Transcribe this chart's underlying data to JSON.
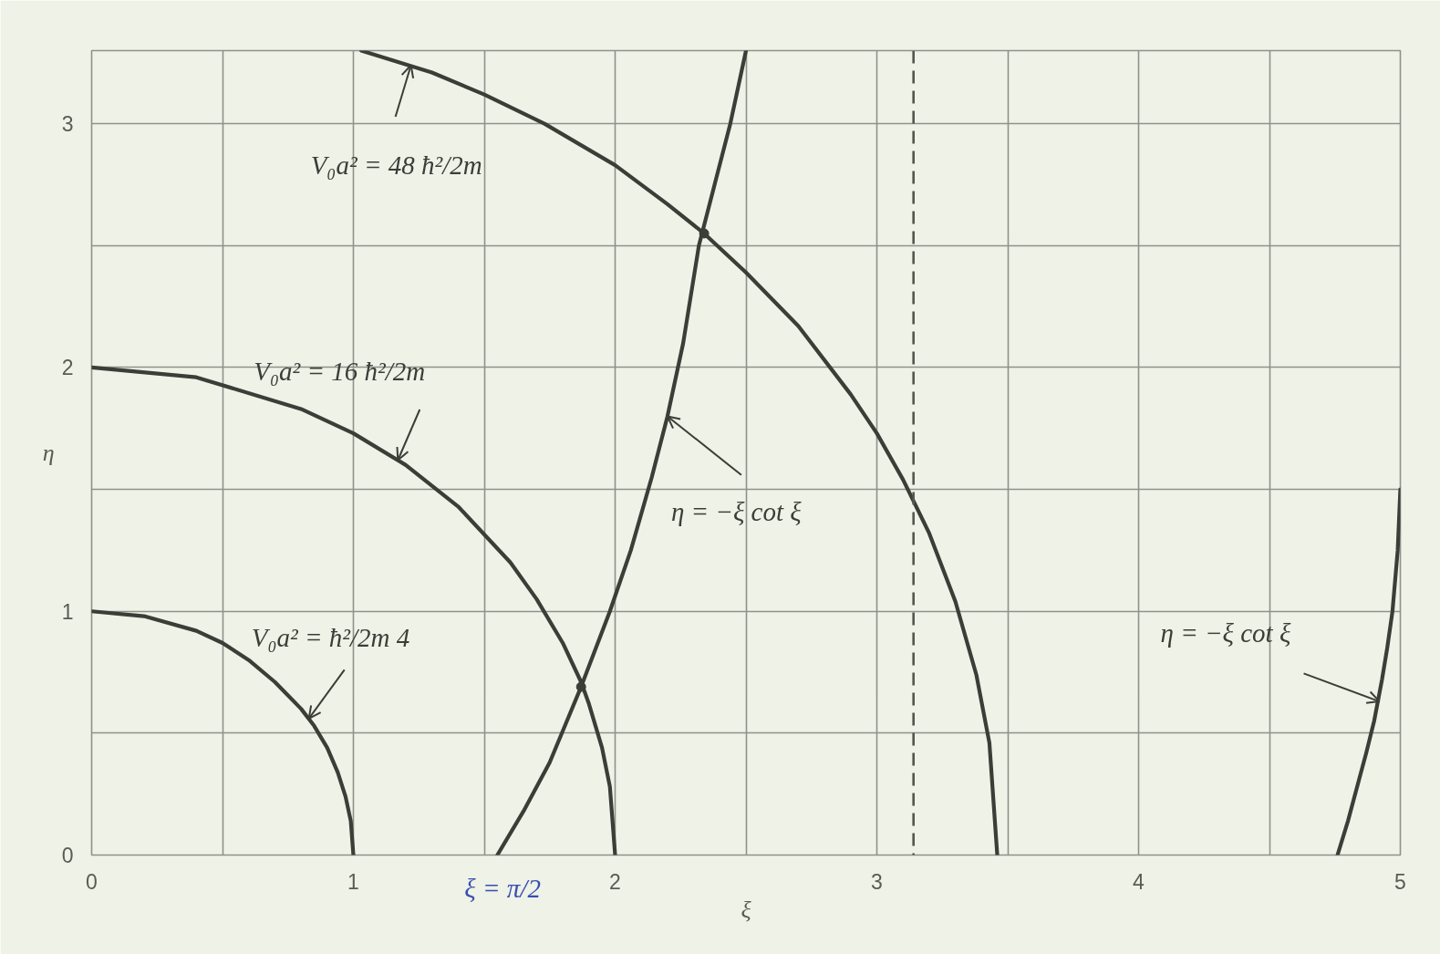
{
  "chart_data": {
    "type": "line",
    "xlabel": "ξ",
    "ylabel": "η",
    "xlim": [
      0,
      5
    ],
    "ylim": [
      0,
      3.3
    ],
    "xticks": [
      0,
      {
        "value": 0.5,
        "label": null
      },
      1,
      {
        "value": 1.5,
        "label": null
      },
      2,
      {
        "value": 2.5,
        "label": null
      },
      3,
      {
        "value": 3.5,
        "label": null
      },
      4,
      {
        "value": 4.5,
        "label": null
      },
      5
    ],
    "yticks": [
      0,
      {
        "value": 0.5,
        "label": null
      },
      1,
      {
        "value": 1.5,
        "label": null
      },
      2,
      {
        "value": 2.5,
        "label": null
      },
      3
    ],
    "grid": true,
    "line_style": "solid",
    "series": [
      {
        "color": "#3c3d37",
        "x": [
          0,
          0.2,
          0.4,
          0.5,
          0.6,
          0.7,
          0.8,
          0.85,
          0.9,
          0.94,
          0.97,
          0.99,
          1.0
        ],
        "values": [
          1,
          0.98,
          0.92,
          0.87,
          0.8,
          0.71,
          0.6,
          0.53,
          0.44,
          0.34,
          0.24,
          0.14,
          0
        ]
      },
      {
        "color": "#3c3d37",
        "x": [
          0,
          0.4,
          0.8,
          1.0,
          1.2,
          1.4,
          1.6,
          1.7,
          1.8,
          1.87,
          1.9,
          1.95,
          1.98,
          2.0
        ],
        "values": [
          2,
          1.96,
          1.83,
          1.73,
          1.6,
          1.43,
          1.2,
          1.05,
          0.87,
          0.71,
          0.62,
          0.44,
          0.28,
          0
        ]
      },
      {
        "color": "#3c3d37",
        "x": [
          1.03,
          1.3,
          1.5,
          1.73,
          2.0,
          2.2,
          2.34,
          2.5,
          2.7,
          2.9,
          3.0,
          3.1,
          3.2,
          3.3,
          3.38,
          3.43,
          3.46
        ],
        "values": [
          3.3,
          3.21,
          3.12,
          3.0,
          2.83,
          2.67,
          2.55,
          2.39,
          2.17,
          1.89,
          1.73,
          1.54,
          1.32,
          1.04,
          0.74,
          0.46,
          0
        ]
      },
      {
        "color": "#3c3d37",
        "x": [
          1.55,
          1.65,
          1.75,
          1.87,
          1.98,
          2.06,
          2.14,
          2.2,
          2.26,
          2.32,
          2.38,
          2.44,
          2.5
        ],
        "values": [
          0,
          0.18,
          0.38,
          0.69,
          1.0,
          1.25,
          1.55,
          1.8,
          2.1,
          2.5,
          2.75,
          3.0,
          3.3
        ]
      },
      {
        "color": "#3c3d37",
        "x": [
          4.76,
          4.8,
          4.84,
          4.87,
          4.9,
          4.93,
          4.95,
          4.97,
          4.99,
          5.0
        ],
        "values": [
          0,
          0.14,
          0.3,
          0.42,
          0.55,
          0.72,
          0.85,
          1.0,
          1.25,
          1.5
        ]
      },
      {
        "type": "scatter",
        "marker": "circle",
        "color": "#3c3d37",
        "x": [
          1.87,
          2.34
        ],
        "values": [
          0.69,
          2.55
        ]
      }
    ],
    "ref_lines": [
      {
        "axis": "x",
        "value": 3.14,
        "line_style": "dashed",
        "color": "#55564f"
      }
    ],
    "annotations": [
      {
        "text": "V₀a² = 48 ħ²/2m",
        "x": 1.22,
        "y": 3.24
      },
      {
        "text": "V₀a² = 16 ħ²/2m",
        "x": 1.17,
        "y": 1.62
      },
      {
        "text": "V₀a² = ħ²/2m 4",
        "x": 0.83,
        "y": 0.56
      },
      {
        "text": "η = −ξ cot ξ",
        "x": 2.2,
        "y": 1.8
      },
      {
        "text": "η = −ξ cot ξ",
        "x": 4.92,
        "y": 0.63
      },
      {
        "text": "ξ = π/2",
        "x": 1.57,
        "y": 0
      }
    ]
  }
}
